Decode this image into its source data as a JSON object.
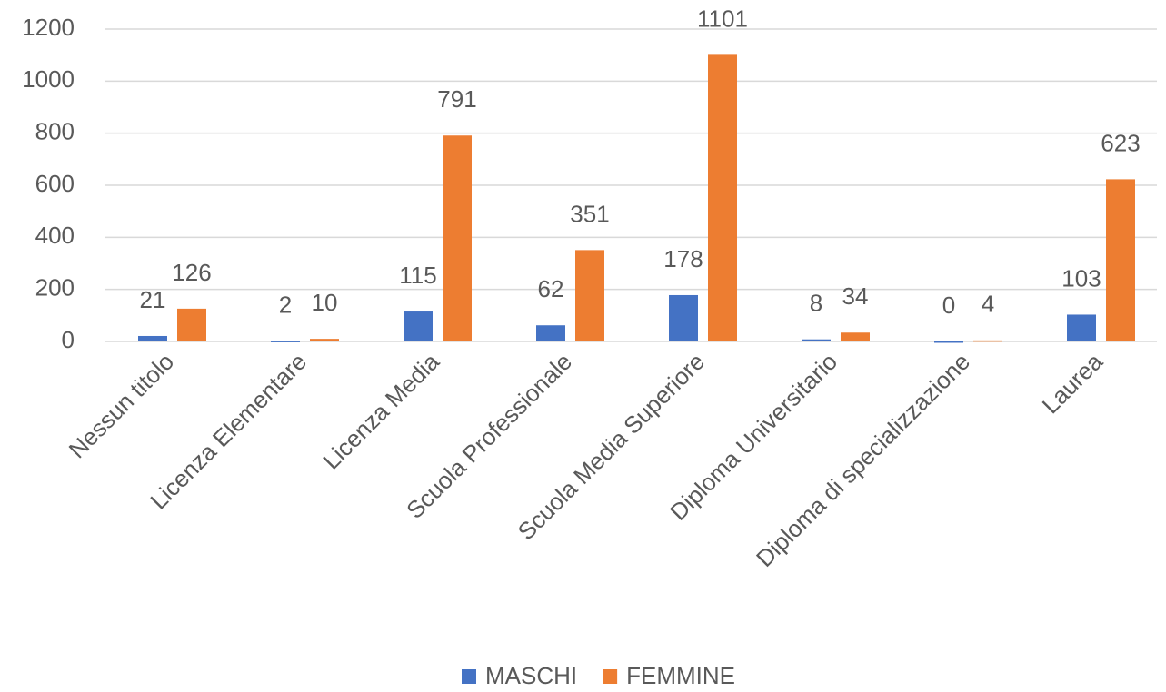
{
  "chart_data": {
    "type": "bar",
    "categories": [
      "Nessun titolo",
      "Licenza Elementare",
      "Licenza Media",
      "Scuola Professionale",
      "Scuola Media Superiore",
      "Diploma Universitario",
      "Diploma di specializzazione",
      "Laurea"
    ],
    "series": [
      {
        "name": "MASCHI",
        "color": "#4472c4",
        "values": [
          21,
          2,
          115,
          62,
          178,
          8,
          0,
          103
        ]
      },
      {
        "name": "FEMMINE",
        "color": "#ed7d31",
        "values": [
          126,
          10,
          791,
          351,
          1101,
          34,
          4,
          623
        ]
      }
    ],
    "ylim": [
      0,
      1200
    ],
    "yticks": [
      0,
      200,
      400,
      600,
      800,
      1000,
      1200
    ],
    "grid": true,
    "legend": "bottom"
  }
}
